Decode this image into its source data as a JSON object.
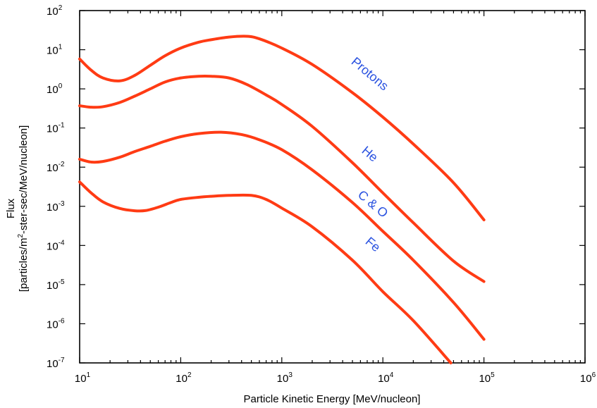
{
  "chart_data": {
    "type": "line",
    "title": "",
    "xlabel": "Particle Kinetic Energy [MeV/nucleon]",
    "ylabel_line1": "Flux",
    "ylabel_line2_before_sup": "[particles/m",
    "ylabel_sup": "2",
    "ylabel_line2_after_sup": "-ster-sec/MeV/nucleon]",
    "xscale": "log",
    "yscale": "log",
    "xlim": [
      10,
      1000000
    ],
    "ylim": [
      1e-07,
      100
    ],
    "grid": false,
    "x_ticks": [
      {
        "value": 10,
        "base": "10",
        "exp": "1"
      },
      {
        "value": 100,
        "base": "10",
        "exp": "2"
      },
      {
        "value": 1000,
        "base": "10",
        "exp": "3"
      },
      {
        "value": 10000,
        "base": "10",
        "exp": "4"
      },
      {
        "value": 100000,
        "base": "10",
        "exp": "5"
      },
      {
        "value": 1000000,
        "base": "10",
        "exp": "6"
      }
    ],
    "y_ticks": [
      {
        "value": 100,
        "base": "10",
        "exp": "2"
      },
      {
        "value": 10,
        "base": "10",
        "exp": "1"
      },
      {
        "value": 1,
        "base": "10",
        "exp": "0"
      },
      {
        "value": 0.1,
        "base": "10",
        "exp": "-1"
      },
      {
        "value": 0.01,
        "base": "10",
        "exp": "-2"
      },
      {
        "value": 0.001,
        "base": "10",
        "exp": "-3"
      },
      {
        "value": 0.0001,
        "base": "10",
        "exp": "-4"
      },
      {
        "value": 1e-05,
        "base": "10",
        "exp": "-5"
      },
      {
        "value": 1e-06,
        "base": "10",
        "exp": "-6"
      },
      {
        "value": 1e-07,
        "base": "10",
        "exp": "-7"
      }
    ],
    "series": [
      {
        "name": "Protons",
        "color": "#ff3b14",
        "x": [
          10,
          13,
          17,
          25,
          35,
          50,
          70,
          100,
          150,
          200,
          300,
          450,
          600,
          1000,
          2000,
          5000,
          10000,
          20000,
          50000,
          100000
        ],
        "y": [
          5.8,
          3.0,
          1.9,
          1.6,
          2.2,
          4.0,
          7.0,
          11,
          15.5,
          18,
          21,
          22,
          19,
          11,
          4.2,
          0.8,
          0.19,
          0.039,
          0.004,
          0.00045
        ]
      },
      {
        "name": "He",
        "color": "#ff3b14",
        "x": [
          10,
          13,
          17,
          25,
          35,
          50,
          70,
          100,
          150,
          200,
          300,
          450,
          700,
          1000,
          2000,
          5000,
          10000,
          20000,
          50000,
          100000
        ],
        "y": [
          0.37,
          0.34,
          0.35,
          0.45,
          0.65,
          1.0,
          1.5,
          1.9,
          2.1,
          2.1,
          1.9,
          1.3,
          0.7,
          0.4,
          0.11,
          0.013,
          0.0022,
          0.00038,
          4e-05,
          1.2e-05
        ]
      },
      {
        "name": "C & O",
        "color": "#ff3b14",
        "x": [
          10,
          13,
          17,
          25,
          35,
          50,
          70,
          100,
          150,
          250,
          400,
          600,
          1000,
          2000,
          5000,
          10000,
          20000,
          50000,
          100000
        ],
        "y": [
          0.016,
          0.0135,
          0.014,
          0.018,
          0.025,
          0.034,
          0.046,
          0.06,
          0.072,
          0.078,
          0.068,
          0.05,
          0.028,
          0.0085,
          0.00125,
          0.00023,
          4.2e-05,
          3.5e-06,
          4e-07
        ]
      },
      {
        "name": "Fe",
        "color": "#ff3b14",
        "x": [
          10,
          13,
          17,
          25,
          35,
          45,
          60,
          80,
          100,
          150,
          200,
          300,
          500,
          700,
          1000,
          2000,
          5000,
          10000,
          20000,
          47000
        ],
        "y": [
          0.0042,
          0.0022,
          0.0013,
          0.00088,
          0.00077,
          0.00078,
          0.00095,
          0.00125,
          0.0015,
          0.0017,
          0.0018,
          0.0019,
          0.0019,
          0.0015,
          0.0009,
          0.0003,
          4.2e-05,
          6.6e-06,
          1.2e-06,
          1e-07
        ]
      }
    ],
    "annotations": [
      {
        "text": "Protons",
        "x": 7000,
        "y": 2.0,
        "rotation": 40
      },
      {
        "text": "He",
        "x": 7000,
        "y": 0.018,
        "rotation": 40
      },
      {
        "text": "C & O",
        "x": 7500,
        "y": 0.00095,
        "rotation": 40
      },
      {
        "text": "Fe",
        "x": 7500,
        "y": 8.8e-05,
        "rotation": 40
      }
    ]
  }
}
